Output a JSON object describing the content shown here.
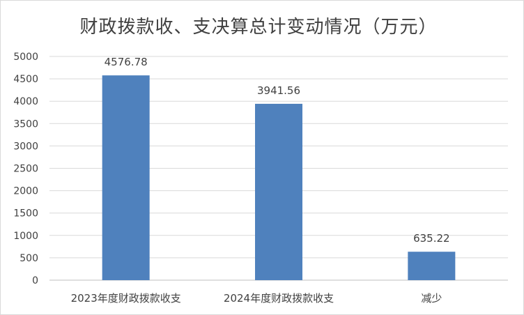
{
  "chart_data": {
    "type": "bar",
    "title": "财政拨款收、支决算总计变动情况（万元）",
    "xlabel": "",
    "ylabel": "",
    "categories": [
      "2023年度财政拨款收支",
      "2024年度财政拨款收支",
      "减少"
    ],
    "values": [
      4576.78,
      3941.56,
      635.22
    ],
    "value_labels": [
      "4576.78",
      "3941.56",
      "635.22"
    ],
    "ylim": [
      0,
      5000
    ],
    "yticks": [
      0,
      500,
      1000,
      1500,
      2000,
      2500,
      3000,
      3500,
      4000,
      4500,
      5000
    ],
    "grid": true,
    "legend": "none",
    "bar_color": "#4f81bd"
  }
}
